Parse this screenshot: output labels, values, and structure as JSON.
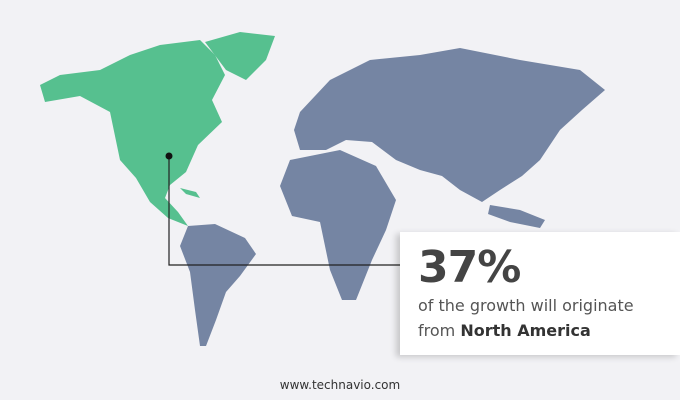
{
  "colors": {
    "highlight": "#56c08f",
    "other": "#7585a3",
    "background": "#f2f2f5"
  },
  "highlighted_region": "North America",
  "callout": {
    "value": "37%",
    "text_line1": "of the growth will originate",
    "text_prefix": "from",
    "region": "North America"
  },
  "footer": {
    "url": "www.technavio.com"
  }
}
